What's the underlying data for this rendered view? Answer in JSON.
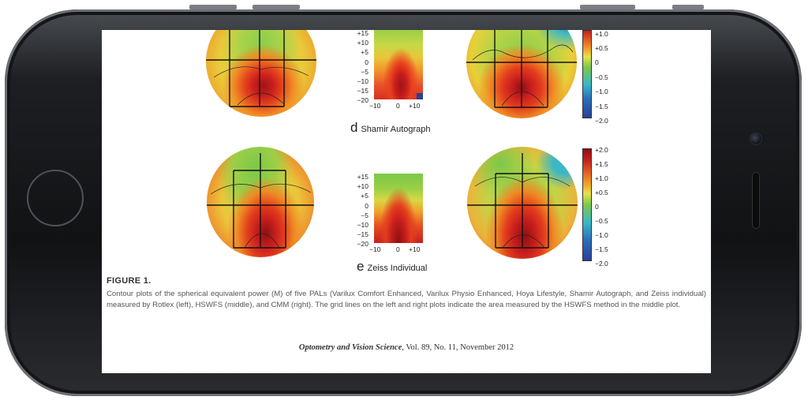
{
  "figure": {
    "title": "FIGURE 1.",
    "caption": "Contour plots of the spherical equivalent power (M) of five PALs (Varilux Comfort Enhanced, Varilux Physio Enhanced, Hoya Lifestyle, Shamir Autograph, and Zeiss individual) measured by Rotlex (left), HSWFS (middle), and CMM (right). The grid lines on the left and right plots indicate the area measured by the HSWFS method in the middle plot.",
    "journal_name": "Optometry and Vision Science",
    "journal_details": ", Vol. 89, No. 11, November 2012"
  },
  "panels": [
    {
      "letter": "d",
      "name": "Shamir Autograph",
      "y_ticks": [
        "+15",
        "+10",
        "+5",
        "0",
        "−5",
        "−10",
        "−15",
        "−20"
      ],
      "x_ticks": [
        "−10",
        "0",
        "+10"
      ],
      "colorbar_ticks": [
        "+1.0",
        "+0.5",
        "0",
        "−0.5",
        "−1.0",
        "−1.5",
        "−2.0"
      ]
    },
    {
      "letter": "e",
      "name": "Zeiss Individual",
      "y_ticks": [
        "+15",
        "+10",
        "+5",
        "0",
        "−5",
        "−10",
        "−15",
        "−20"
      ],
      "x_ticks": [
        "−10",
        "0",
        "+10"
      ],
      "colorbar_ticks": [
        "+2.0",
        "+1.5",
        "+1.0",
        "+0.5",
        "0",
        "−0.5",
        "−1.0",
        "−1.5",
        "−2.0"
      ]
    }
  ],
  "colors": {
    "red": "#c81e1e",
    "orange": "#f08a24",
    "yellow": "#e7e24a",
    "green": "#7cc84a",
    "cyan": "#3ab8c8",
    "blue": "#2a3f9a"
  }
}
